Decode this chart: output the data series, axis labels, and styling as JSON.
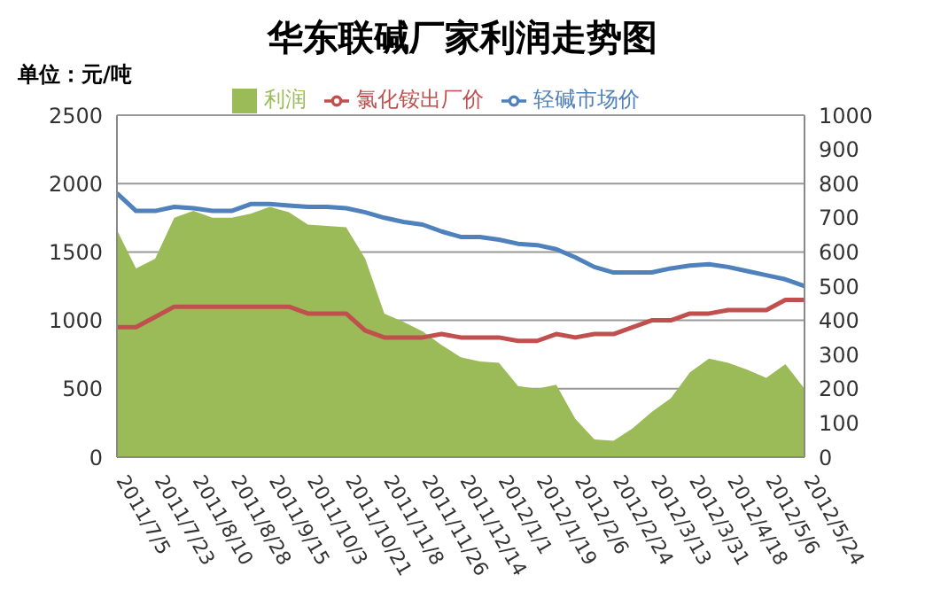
{
  "chart_data": {
    "type": "line",
    "title": "华东联碱厂家利润走势图",
    "subtitle": "单位：元/吨",
    "x": [
      "2011-07-05",
      "2011-07-14",
      "2011-07-23",
      "2011-08-01",
      "2011-08-10",
      "2011-08-19",
      "2011-08-28",
      "2011-09-06",
      "2011-09-15",
      "2011-09-24",
      "2011-10-03",
      "2011-10-12",
      "2011-10-21",
      "2011-10-30",
      "2011-11-08",
      "2011-11-17",
      "2011-11-26",
      "2011-12-05",
      "2011-12-14",
      "2011-12-23",
      "2012-01-01",
      "2012-01-10",
      "2012-01-19",
      "2012-01-28",
      "2012-02-06",
      "2012-02-15",
      "2012-02-24",
      "2012-03-04",
      "2012-03-13",
      "2012-03-22",
      "2012-03-31",
      "2012-04-09",
      "2012-04-18",
      "2012-04-27",
      "2012-05-06",
      "2012-05-15",
      "2012-05-24"
    ],
    "series": [
      {
        "name": "利润",
        "type": "area",
        "color": "#9bbb59",
        "values": [
          1660,
          1380,
          1450,
          1750,
          1800,
          1750,
          1750,
          1780,
          1830,
          1790,
          1700,
          1690,
          1680,
          1450,
          1050,
          990,
          920,
          820,
          730,
          700,
          690,
          520,
          500,
          530,
          280,
          130,
          120,
          210,
          330,
          430,
          620,
          720,
          690,
          640,
          580,
          680,
          500
        ]
      },
      {
        "name": "轻碱市场价",
        "color": "#4f81bd",
        "values": [
          1930,
          1800,
          1800,
          1830,
          1820,
          1800,
          1800,
          1850,
          1850,
          1840,
          1830,
          1830,
          1820,
          1790,
          1750,
          1720,
          1700,
          1650,
          1610,
          1610,
          1590,
          1560,
          1550,
          1520,
          1460,
          1390,
          1350,
          1350,
          1350,
          1380,
          1400,
          1410,
          1390,
          1360,
          1330,
          1300,
          1250
        ]
      },
      {
        "name": "氯化铵出厂价",
        "type": "line",
        "axis": "y2",
        "color": "#c0504d",
        "values": [
          380,
          380,
          410,
          440,
          440,
          440,
          440,
          440,
          440,
          440,
          420,
          420,
          420,
          370,
          350,
          350,
          350,
          360,
          350,
          350,
          350,
          340,
          340,
          360,
          350,
          360,
          360,
          380,
          400,
          400,
          420,
          420,
          430,
          430,
          430,
          460,
          460
        ]
      }
    ],
    "xlim": [
      "2011-07-05",
      "2012-05-24"
    ],
    "xticks": [
      {
        "value": "2011-07-05",
        "label": "2011/7/5"
      },
      {
        "value": "2011-07-23",
        "label": "2011/7/23"
      },
      {
        "value": "2011-08-10",
        "label": "2011/8/10"
      },
      {
        "value": "2011-08-28",
        "label": "2011/8/28"
      },
      {
        "value": "2011-09-15",
        "label": "2011/9/15"
      },
      {
        "value": "2011-10-03",
        "label": "2011/10/3"
      },
      {
        "value": "2011-10-21",
        "label": "2011/10/21"
      },
      {
        "value": "2011-11-08",
        "label": "2011/11/8"
      },
      {
        "value": "2011-11-26",
        "label": "2011/11/26"
      },
      {
        "value": "2011-12-14",
        "label": "2011/12/14"
      },
      {
        "value": "2012-01-01",
        "label": "2012/1/1"
      },
      {
        "value": "2012-01-19",
        "label": "2012/1/19"
      },
      {
        "value": "2012-02-06",
        "label": "2012/2/6"
      },
      {
        "value": "2012-02-24",
        "label": "2012/2/24"
      },
      {
        "value": "2012-03-13",
        "label": "2012/3/13"
      },
      {
        "value": "2012-03-31",
        "label": "2012/3/31"
      },
      {
        "value": "2012-04-18",
        "label": "2012/4/18"
      },
      {
        "value": "2012-05-06",
        "label": "2012/5/6"
      },
      {
        "value": "2012-05-24",
        "label": "2012/5/24"
      }
    ],
    "ylim": [
      0,
      2500
    ],
    "yticks": [
      0,
      500,
      1000,
      1500,
      2000,
      2500
    ],
    "y2lim": [
      0,
      1000
    ],
    "y2ticks": [
      0,
      100,
      200,
      300,
      400,
      500,
      600,
      700,
      800,
      900,
      1000
    ],
    "grid": "y",
    "legend": "top",
    "marker": "none",
    "line_style": "solid"
  }
}
